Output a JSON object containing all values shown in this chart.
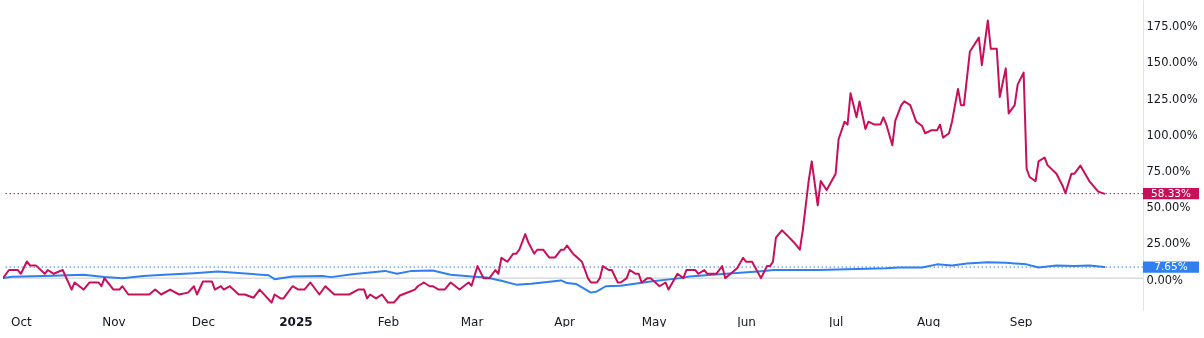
{
  "chart_data": {
    "type": "line",
    "xlim": [
      "2024-09-25",
      "2025-10-12"
    ],
    "ylim": [
      -22,
      192
    ],
    "xticks": [
      {
        "value": "2024-10-01",
        "label": "Oct"
      },
      {
        "value": "2024-11-01",
        "label": "Nov"
      },
      {
        "value": "2024-12-01",
        "label": "Dec"
      },
      {
        "value": "2025-01-01",
        "label": "2025"
      },
      {
        "value": "2025-02-01",
        "label": "Feb"
      },
      {
        "value": "2025-03-01",
        "label": "Mar"
      },
      {
        "value": "2025-04-01",
        "label": "Apr"
      },
      {
        "value": "2025-05-01",
        "label": "May"
      },
      {
        "value": "2025-06-01",
        "label": "Jun"
      },
      {
        "value": "2025-07-01",
        "label": "Jul"
      },
      {
        "value": "2025-08-01",
        "label": "Aug"
      },
      {
        "value": "2025-09-01",
        "label": "Sep"
      }
    ],
    "yticks": [
      {
        "value": 0,
        "label": "0.00%"
      },
      {
        "value": 25,
        "label": "25.00%"
      },
      {
        "value": 50,
        "label": "50.00%"
      },
      {
        "value": 75,
        "label": "75.00%"
      },
      {
        "value": 100,
        "label": "100.00%"
      },
      {
        "value": 125,
        "label": "125.00%"
      },
      {
        "value": 150,
        "label": "150.00%"
      },
      {
        "value": 175,
        "label": "175.00%"
      }
    ],
    "marker": "none",
    "line_style": "solid",
    "ref_lines": [
      {
        "axis": "y",
        "value": 0,
        "color": "#c9c9cc",
        "line_style": "solid"
      },
      {
        "axis": "y",
        "value": 7.65,
        "label": "7.65%",
        "color": "#2f7ff0",
        "line_style": "dotted"
      },
      {
        "axis": "y",
        "value": 58.33,
        "label": "58.33%",
        "color": "#c8105a",
        "line_style": "dotted"
      }
    ],
    "series": [
      {
        "color": "#2f7ff0",
        "x": [
          "2024-09-25",
          "2024-09-28",
          "2024-10-09",
          "2024-10-22",
          "2024-10-29",
          "2024-11-04",
          "2024-11-11",
          "2024-11-18",
          "2024-11-28",
          "2024-12-06",
          "2024-12-14",
          "2024-12-23",
          "2024-12-25",
          "2024-12-31",
          "2025-01-10",
          "2025-01-13",
          "2025-01-20",
          "2025-01-31",
          "2025-02-04",
          "2025-02-09",
          "2025-02-16",
          "2025-02-22",
          "2025-03-01",
          "2025-03-06",
          "2025-03-11",
          "2025-03-16",
          "2025-03-21",
          "2025-03-31",
          "2025-04-02",
          "2025-04-05",
          "2025-04-10",
          "2025-04-12",
          "2025-04-15",
          "2025-04-20",
          "2025-04-30",
          "2025-05-10",
          "2025-05-13",
          "2025-05-23",
          "2025-06-05",
          "2025-06-10",
          "2025-06-25",
          "2025-07-05",
          "2025-07-18",
          "2025-07-22",
          "2025-07-30",
          "2025-08-04",
          "2025-08-09",
          "2025-08-14",
          "2025-08-21",
          "2025-08-27",
          "2025-09-03",
          "2025-09-07",
          "2025-09-13",
          "2025-09-19",
          "2025-09-24",
          "2025-09-29"
        ],
        "values": [
          0,
          1,
          1.5,
          2.3,
          0.7,
          0,
          1.5,
          2.3,
          3.4,
          4.5,
          3.4,
          2,
          -0.7,
          1.1,
          1.5,
          0.7,
          2.7,
          5,
          3,
          5,
          5.2,
          2.3,
          1.1,
          0.5,
          -1.8,
          -4.5,
          -3.8,
          -1.6,
          -3.4,
          -4,
          -10,
          -9.2,
          -5.6,
          -5.2,
          -2.3,
          0,
          1.1,
          2.7,
          4.5,
          5.6,
          5.6,
          6.2,
          6.8,
          7.4,
          7.4,
          9.5,
          8.8,
          10.1,
          11,
          10.6,
          9.5,
          7.4,
          8.8,
          8.3,
          8.8,
          7.65
        ]
      },
      {
        "color": "#c8105a",
        "x": [
          "2024-09-25",
          "2024-09-27",
          "2024-09-30",
          "2024-10-01",
          "2024-10-03",
          "2024-10-04",
          "2024-10-06",
          "2024-10-09",
          "2024-10-10",
          "2024-10-12",
          "2024-10-15",
          "2024-10-18",
          "2024-10-19",
          "2024-10-22",
          "2024-10-24",
          "2024-10-27",
          "2024-10-28",
          "2024-10-29",
          "2024-11-01",
          "2024-11-03",
          "2024-11-04",
          "2024-11-06",
          "2024-11-09",
          "2024-11-13",
          "2024-11-15",
          "2024-11-17",
          "2024-11-20",
          "2024-11-23",
          "2024-11-26",
          "2024-11-28",
          "2024-11-29",
          "2024-12-01",
          "2024-12-04",
          "2024-12-05",
          "2024-12-07",
          "2024-12-08",
          "2024-12-10",
          "2024-12-13",
          "2024-12-15",
          "2024-12-18",
          "2024-12-20",
          "2024-12-24",
          "2024-12-25",
          "2024-12-27",
          "2024-12-28",
          "2024-12-31",
          "2025-01-02",
          "2025-01-04",
          "2025-01-06",
          "2025-01-09",
          "2025-01-11",
          "2025-01-14",
          "2025-01-19",
          "2025-01-22",
          "2025-01-24",
          "2025-01-25",
          "2025-01-26",
          "2025-01-28",
          "2025-01-30",
          "2025-02-01",
          "2025-02-03",
          "2025-02-05",
          "2025-02-08",
          "2025-02-10",
          "2025-02-11",
          "2025-02-13",
          "2025-02-15",
          "2025-02-16",
          "2025-02-18",
          "2025-02-20",
          "2025-02-22",
          "2025-02-25",
          "2025-02-28",
          "2025-03-01",
          "2025-03-03",
          "2025-03-05",
          "2025-03-07",
          "2025-03-09",
          "2025-03-10",
          "2025-03-11",
          "2025-03-13",
          "2025-03-15",
          "2025-03-16",
          "2025-03-17",
          "2025-03-19",
          "2025-03-20",
          "2025-03-22",
          "2025-03-23",
          "2025-03-25",
          "2025-03-27",
          "2025-03-29",
          "2025-03-31",
          "2025-04-01",
          "2025-04-02",
          "2025-04-04",
          "2025-04-07",
          "2025-04-09",
          "2025-04-10",
          "2025-04-12",
          "2025-04-13",
          "2025-04-14",
          "2025-04-16",
          "2025-04-17",
          "2025-04-19",
          "2025-04-20",
          "2025-04-22",
          "2025-04-23",
          "2025-04-25",
          "2025-04-26",
          "2025-04-27",
          "2025-04-29",
          "2025-04-30",
          "2025-05-03",
          "2025-05-05",
          "2025-05-06",
          "2025-05-09",
          "2025-05-11",
          "2025-05-12",
          "2025-05-13",
          "2025-05-15",
          "2025-05-16",
          "2025-05-18",
          "2025-05-19",
          "2025-05-22",
          "2025-05-24",
          "2025-05-25",
          "2025-05-27",
          "2025-05-29",
          "2025-05-31",
          "2025-06-01",
          "2025-06-03",
          "2025-06-06",
          "2025-06-08",
          "2025-06-09",
          "2025-06-10",
          "2025-06-11",
          "2025-06-13",
          "2025-06-15",
          "2025-06-17",
          "2025-06-19",
          "2025-06-20",
          "2025-06-22",
          "2025-06-23",
          "2025-06-25",
          "2025-06-26",
          "2025-06-28",
          "2025-07-01",
          "2025-07-02",
          "2025-07-04",
          "2025-07-05",
          "2025-07-06",
          "2025-07-08",
          "2025-07-09",
          "2025-07-11",
          "2025-07-12",
          "2025-07-14",
          "2025-07-16",
          "2025-07-17",
          "2025-07-18",
          "2025-07-20",
          "2025-07-21",
          "2025-07-23",
          "2025-07-24",
          "2025-07-26",
          "2025-07-28",
          "2025-07-30",
          "2025-07-31",
          "2025-08-02",
          "2025-08-04",
          "2025-08-05",
          "2025-08-06",
          "2025-08-08",
          "2025-08-09",
          "2025-08-11",
          "2025-08-12",
          "2025-08-13",
          "2025-08-15",
          "2025-08-18",
          "2025-08-19",
          "2025-08-21",
          "2025-08-22",
          "2025-08-24",
          "2025-08-25",
          "2025-08-27",
          "2025-08-28",
          "2025-08-30",
          "2025-08-31",
          "2025-09-02",
          "2025-09-03",
          "2025-09-04",
          "2025-09-06",
          "2025-09-07",
          "2025-09-09",
          "2025-09-10",
          "2025-09-13",
          "2025-09-15",
          "2025-09-16",
          "2025-09-18",
          "2025-09-19",
          "2025-09-21",
          "2025-09-24",
          "2025-09-27",
          "2025-09-29"
        ],
        "values": [
          0,
          5.6,
          5.6,
          3,
          11.5,
          8.8,
          8.8,
          3,
          5.6,
          3,
          5.6,
          -7.9,
          -3,
          -7.9,
          -3,
          -3,
          -5.6,
          0,
          -7.9,
          -7.9,
          -5.6,
          -11.3,
          -11.3,
          -11.3,
          -7.9,
          -11.3,
          -7.9,
          -11.3,
          -10,
          -5.6,
          -11.3,
          -2.3,
          -2.3,
          -7.9,
          -5.6,
          -7.9,
          -5.6,
          -11.3,
          -11.3,
          -13.5,
          -7.9,
          -16.9,
          -11.3,
          -14,
          -14,
          -5.6,
          -7.9,
          -7.9,
          -3,
          -11.3,
          -5.6,
          -11.3,
          -11.3,
          -7.9,
          -7.9,
          -14,
          -11.3,
          -14,
          -11.3,
          -16.9,
          -16.9,
          -12,
          -9.6,
          -7.9,
          -5.6,
          -3,
          -5.6,
          -5.6,
          -7.9,
          -7.9,
          -3,
          -7.9,
          -3,
          -5.3,
          8.3,
          0,
          0,
          5.6,
          3,
          14,
          11.3,
          16.9,
          16.9,
          19.6,
          30.4,
          24.8,
          16.9,
          19.6,
          19.6,
          14.3,
          14.3,
          19.6,
          19.6,
          22.5,
          16.9,
          11.3,
          0,
          -3,
          -3,
          0,
          8.3,
          5.6,
          5.6,
          -3,
          -3,
          0,
          5.6,
          3,
          3,
          -3,
          0,
          0,
          -5.6,
          -3,
          -7.9,
          3,
          0,
          5.6,
          5.6,
          5.6,
          3,
          5.6,
          3,
          3,
          8.3,
          0,
          3.4,
          6.8,
          14,
          11.3,
          11.3,
          0,
          8.3,
          8.3,
          11.3,
          28,
          33,
          29,
          24.8,
          19.6,
          33,
          67.6,
          80.6,
          50.2,
          67,
          60.8,
          72,
          95.9,
          108,
          106,
          127.7,
          111,
          122,
          103,
          108,
          106,
          106,
          111,
          106,
          91.7,
          108.8,
          119.4,
          122,
          119.4,
          108,
          105,
          100,
          102,
          102,
          106,
          97,
          100,
          108,
          130.6,
          119.4,
          119.4,
          156.5,
          166,
          147,
          177.9,
          158.3,
          158.3,
          125,
          144.8,
          113.7,
          119.4,
          133.6,
          141.9,
          75.5,
          69.8,
          66.9,
          80.6,
          83.3,
          78,
          72,
          64,
          58.6,
          72,
          72,
          77.7,
          67,
          59.7,
          58.33
        ]
      }
    ]
  }
}
